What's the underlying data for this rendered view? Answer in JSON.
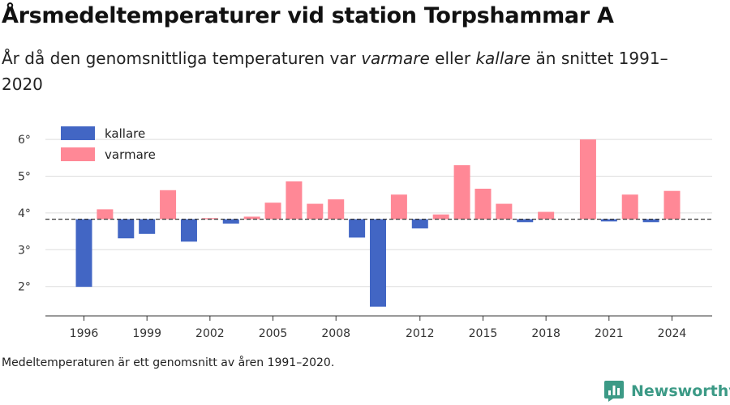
{
  "header": {
    "title": "Årsmedeltemperaturer vid station Torpshammar A",
    "subtitle_prefix": "År då den genomsnittliga temperaturen var ",
    "subtitle_warm": "varmare",
    "subtitle_mid": " eller ",
    "subtitle_cold": "kallare",
    "subtitle_suffix": " än snittet 1991–2020"
  },
  "footer": {
    "note": "Medeltemperaturen är ett genomsnitt av åren 1991–2020.",
    "brand": "Newsworthy"
  },
  "colors": {
    "kallare": "#4266c4",
    "varmare": "#ff8896",
    "brand": "#3c9a86",
    "grid": "#dddddd",
    "reference_line": "#333333"
  },
  "chart_data": {
    "type": "bar",
    "baseline": 3.83,
    "ylim": [
      1.2,
      6.4
    ],
    "y_ticks": [
      2,
      3,
      4,
      5,
      6
    ],
    "y_tick_suffix": "°",
    "x_ticks": [
      1996,
      1999,
      2002,
      2005,
      2008,
      2012,
      2015,
      2018,
      2021,
      2024
    ],
    "legend": {
      "placement": "top-left",
      "items": [
        {
          "key": "kallare",
          "label": "kallare"
        },
        {
          "key": "varmare",
          "label": "varmare"
        }
      ]
    },
    "years": [
      1996,
      1997,
      1998,
      1999,
      2000,
      2001,
      2002,
      2003,
      2004,
      2005,
      2006,
      2007,
      2008,
      2009,
      2010,
      2011,
      2012,
      2013,
      2014,
      2015,
      2016,
      2017,
      2018,
      2020,
      2021,
      2022,
      2023,
      2024
    ],
    "values": [
      1.99,
      4.1,
      3.31,
      3.43,
      4.62,
      3.22,
      3.86,
      3.71,
      3.9,
      4.28,
      4.86,
      4.25,
      4.37,
      3.33,
      1.45,
      4.5,
      3.58,
      3.96,
      5.3,
      4.66,
      4.25,
      3.75,
      4.03,
      6.0,
      3.77,
      4.5,
      3.75,
      4.6
    ]
  }
}
